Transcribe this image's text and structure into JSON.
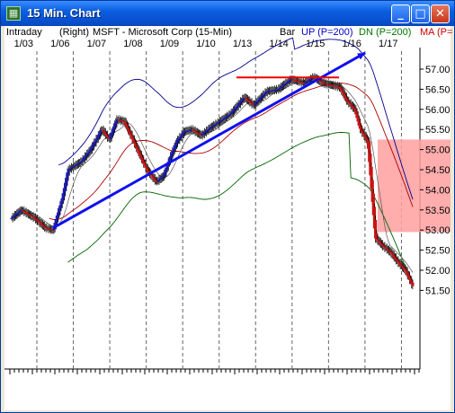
{
  "window": {
    "title": "15 Min. Chart",
    "minimize_label": "_",
    "maximize_label": "□",
    "close_label": "✕",
    "app_icon": "chart-app-icon"
  },
  "header": {
    "intraday": "Intraday",
    "axis_side": "(Right)",
    "symbol": "MSFT - Microsoft Corp (15-Min)",
    "bar": "Bar",
    "up": "UP (P=200)",
    "dn": "DN (P=200)",
    "ma": "MA (P="
  },
  "colors": {
    "up_label": "#0000cc",
    "dn_label": "#007700",
    "ma_label": "#cc0000",
    "upper_band": "#00008b",
    "lower_band": "#006400",
    "moving_average": "#b00000",
    "short_average": "#555555",
    "trendline": "#1010ee",
    "resistance": "#ee0000",
    "shaded_zone": "#ff9f9f",
    "candle_up": "#1c1cb4",
    "candle_down": "#c81414"
  },
  "chart_data": {
    "type": "candlestick",
    "title": "15 Min. Chart",
    "ylim": [
      51.2,
      57.35
    ],
    "y_ticks": [
      "57.00",
      "56.50",
      "56.00",
      "55.50",
      "55.00",
      "54.50",
      "54.00",
      "53.50",
      "53.00",
      "52.50",
      "52.00",
      "51.50"
    ],
    "date_labels": [
      "1/03",
      "1/06",
      "1/07",
      "1/08",
      "1/09",
      "1/10",
      "1/13",
      "1/14",
      "1/15",
      "1/16",
      "1/17"
    ],
    "price_path": [
      [
        0,
        53.3
      ],
      [
        5,
        53.5
      ],
      [
        12,
        53.3
      ],
      [
        18,
        53.05
      ],
      [
        22,
        53.0
      ],
      [
        27,
        53.8
      ],
      [
        30,
        54.5
      ],
      [
        37,
        54.7
      ],
      [
        42,
        55.0
      ],
      [
        48,
        55.5
      ],
      [
        52,
        55.25
      ],
      [
        56,
        55.75
      ],
      [
        60,
        55.7
      ],
      [
        64,
        55.3
      ],
      [
        68,
        54.9
      ],
      [
        72,
        54.5
      ],
      [
        77,
        54.2
      ],
      [
        81,
        54.35
      ],
      [
        84,
        54.75
      ],
      [
        88,
        55.2
      ],
      [
        92,
        55.45
      ],
      [
        96,
        55.5
      ],
      [
        101,
        55.35
      ],
      [
        106,
        55.55
      ],
      [
        111,
        55.7
      ],
      [
        117,
        55.9
      ],
      [
        124,
        56.3
      ],
      [
        129,
        56.1
      ],
      [
        136,
        56.45
      ],
      [
        142,
        56.5
      ],
      [
        149,
        56.75
      ],
      [
        156,
        56.65
      ],
      [
        161,
        56.8
      ],
      [
        166,
        56.65
      ],
      [
        171,
        56.6
      ],
      [
        175,
        56.55
      ],
      [
        179,
        56.2
      ],
      [
        183,
        56.0
      ],
      [
        186,
        55.5
      ],
      [
        190,
        55.2
      ],
      [
        194,
        52.8
      ],
      [
        198,
        52.6
      ],
      [
        202,
        52.45
      ],
      [
        206,
        52.2
      ],
      [
        210,
        52.0
      ],
      [
        214,
        51.6
      ]
    ],
    "resistance_level": 56.75,
    "trendline": {
      "start": [
        22,
        53.05
      ],
      "end": [
        167,
        56.8
      ]
    },
    "shaded_zone": {
      "from_price": 52.95,
      "to_price": 55.25
    }
  }
}
